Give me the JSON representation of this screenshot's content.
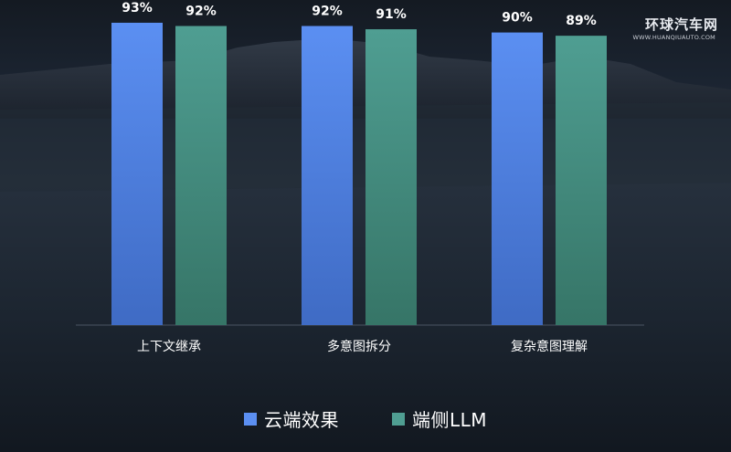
{
  "watermark": {
    "title": "环球汽车网",
    "subtitle": "WWW.HUANQIUAUTO.COM"
  },
  "legend": [
    {
      "label": "云端效果",
      "color": "#5b8ff2"
    },
    {
      "label": "端侧LLM",
      "color": "#4f9e92"
    }
  ],
  "chart_data": {
    "type": "bar",
    "categories": [
      "上下文继承",
      "多意图拆分",
      "复杂意图理解"
    ],
    "series": [
      {
        "name": "云端效果",
        "values": [
          93,
          92,
          90
        ],
        "labels": [
          "93%",
          "92%",
          "90%"
        ],
        "color": "#5b8ff2"
      },
      {
        "name": "端侧LLM",
        "values": [
          92,
          91,
          89
        ],
        "labels": [
          "92%",
          "91%",
          "89%"
        ],
        "color": "#4f9e92"
      }
    ],
    "title": "",
    "xlabel": "",
    "ylabel": "",
    "ylim": [
      0,
      100
    ],
    "grid": false,
    "legend_position": "bottom"
  }
}
